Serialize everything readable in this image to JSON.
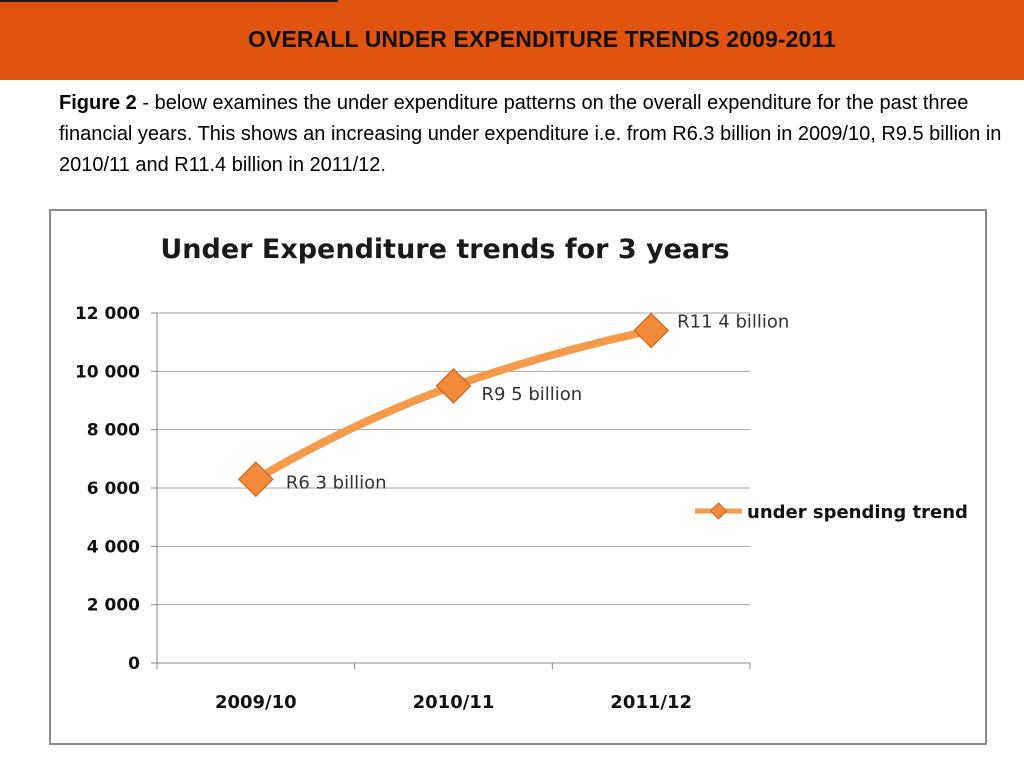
{
  "header": {
    "title": "OVERALL UNDER EXPENDITURE TRENDS 2009-2011"
  },
  "intro": {
    "figure_ref": "Figure 2",
    "text": " - below examines the under expenditure patterns on the overall expenditure for the past three financial years. This shows an increasing under expenditure i.e. from R6.3 billion in 2009/10, R9.5 billion in 2010/11 and R11.4 billion in 2011/12."
  },
  "colors": {
    "header_bg": "#e0540f",
    "line": "#f59a4a",
    "marker": "#f28a3a"
  },
  "chart_data": {
    "type": "line",
    "title": "Under Expenditure trends for 3 years",
    "categories": [
      "2009/10",
      "2010/11",
      "2011/12"
    ],
    "series": [
      {
        "name": "under spending trend",
        "values": [
          6300,
          9500,
          11400
        ],
        "data_labels": [
          "R6 3  billion",
          "R9 5 billion",
          "R11 4 billion"
        ]
      }
    ],
    "ylim": [
      0,
      12000
    ],
    "yticks": [
      0,
      2000,
      4000,
      6000,
      8000,
      10000,
      12000
    ],
    "ytick_labels": [
      "0",
      "2 000",
      "4 000",
      "6 000",
      "8 000",
      "10 000",
      "12 000"
    ],
    "xlabel": "",
    "ylabel": "",
    "grid": true,
    "legend": "right"
  }
}
